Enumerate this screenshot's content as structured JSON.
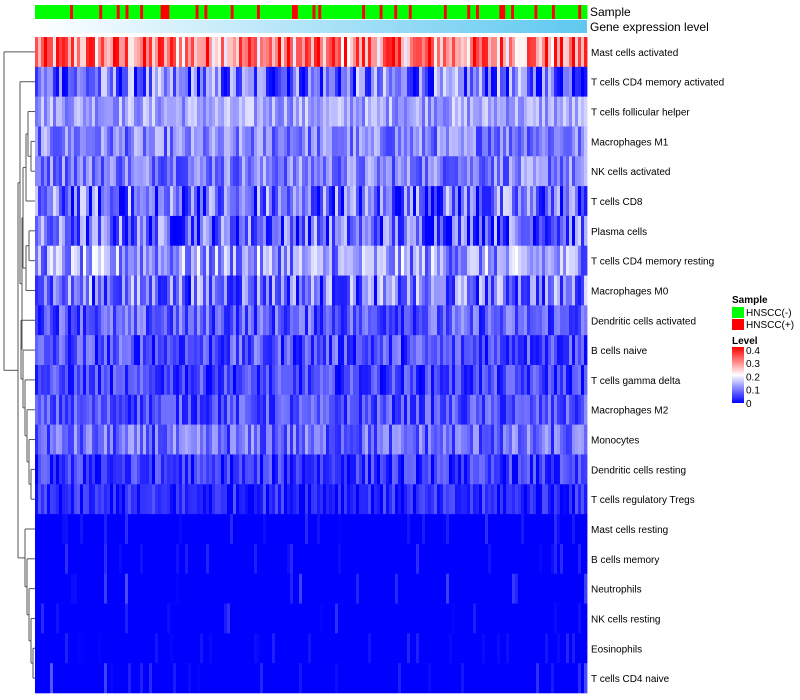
{
  "chart_data": {
    "type": "heatmap",
    "title": "",
    "annotations": {
      "sample_label": "Sample",
      "expression_label": "Gene expression level"
    },
    "rows": [
      {
        "name": "Mast cells activated",
        "mean": 0.3,
        "spread": 0.12
      },
      {
        "name": "T cells CD4 memory activated",
        "mean": 0.08,
        "spread": 0.1
      },
      {
        "name": "T cells follicular helper",
        "mean": 0.13,
        "spread": 0.05
      },
      {
        "name": "Macrophages M1",
        "mean": 0.1,
        "spread": 0.06
      },
      {
        "name": "NK cells activated",
        "mean": 0.1,
        "spread": 0.06
      },
      {
        "name": "T cells CD8",
        "mean": 0.08,
        "spread": 0.1
      },
      {
        "name": "Plasma cells",
        "mean": 0.08,
        "spread": 0.09
      },
      {
        "name": "T cells CD4 memory resting",
        "mean": 0.12,
        "spread": 0.08
      },
      {
        "name": "Macrophages M0",
        "mean": 0.09,
        "spread": 0.09
      },
      {
        "name": "Dendritic cells activated",
        "mean": 0.07,
        "spread": 0.06
      },
      {
        "name": "B cells naive",
        "mean": 0.06,
        "spread": 0.06
      },
      {
        "name": "T cells gamma delta",
        "mean": 0.05,
        "spread": 0.05
      },
      {
        "name": "Macrophages M2",
        "mean": 0.06,
        "spread": 0.05
      },
      {
        "name": "Monocytes",
        "mean": 0.08,
        "spread": 0.06
      },
      {
        "name": "Dendritic cells resting",
        "mean": 0.04,
        "spread": 0.05
      },
      {
        "name": "T cells regulatory  Tregs",
        "mean": 0.03,
        "spread": 0.04
      },
      {
        "name": "Mast cells resting",
        "mean": 0.01,
        "spread": 0.03
      },
      {
        "name": "B cells memory",
        "mean": 0.01,
        "spread": 0.03
      },
      {
        "name": "Neutrophils",
        "mean": 0.02,
        "spread": 0.04
      },
      {
        "name": "NK cells resting",
        "mean": 0.01,
        "spread": 0.03
      },
      {
        "name": "Eosinophils",
        "mean": 0.01,
        "spread": 0.02
      },
      {
        "name": "T cells CD4 naive",
        "mean": 0.02,
        "spread": 0.05
      }
    ],
    "n_columns": 184,
    "sample_pattern": "NNNNNNNNNNNNPNNNNNNNNNPNNNNNPNNPNNNNPNNNNNNPPPNNNNNNNNNPNNPNNNNNNNNPNNNNNNNNPNNNNNNNNNNNPPNNNNNPNPNNNNNNNNNNNNNNPNNNNNPNNNNPNNNNPNNNNNNNNNNNPNNNNNNNPNNPNNNNNNNPPNNPNNNNNNNPNNNNNPNNNNNNNNPNN",
    "legend": {
      "sample_title": "Sample",
      "sample_items": [
        {
          "label": "HNSCC(-)",
          "color": "#00FF00"
        },
        {
          "label": "HNSCC(+)",
          "color": "#FF0000"
        }
      ],
      "level_title": "Level",
      "level_ticks": [
        "0.4",
        "0.3",
        "0.2",
        "0.1",
        "0"
      ],
      "range": [
        0,
        0.4
      ],
      "colors": [
        "#0000FF",
        "#FFFFFF",
        "#FF0000"
      ]
    }
  }
}
